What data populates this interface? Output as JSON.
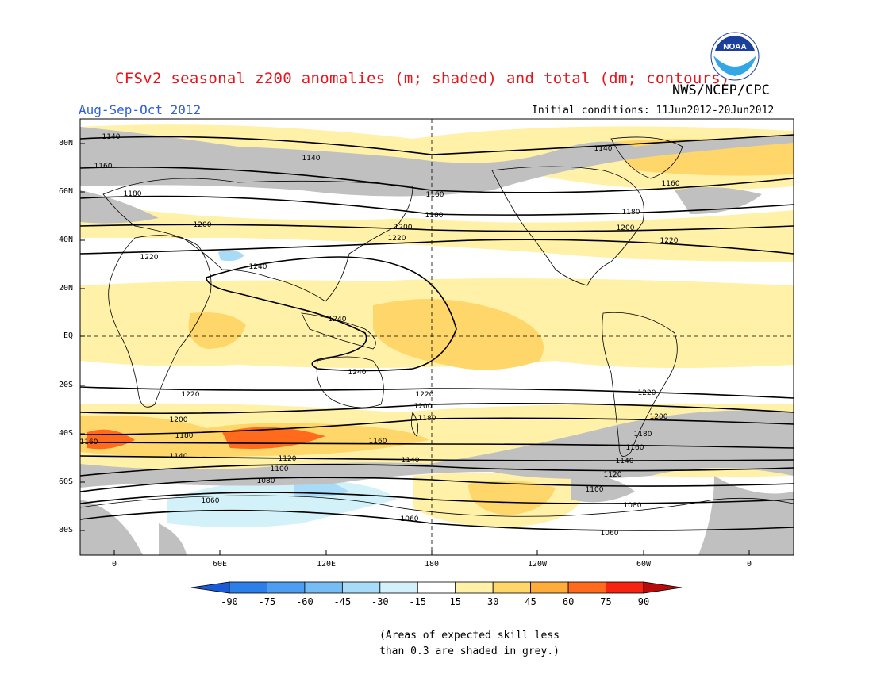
{
  "header": {
    "title": "CFSv2 seasonal z200 anomalies (m; shaded) and total (dm; contours)",
    "agency": "NWS/NCEP/CPC",
    "season": "Aug-Sep-Oct 2012",
    "initial_conditions": "Initial conditions: 11Jun2012-20Jun2012",
    "logo_text": "NOAA"
  },
  "map": {
    "latitude_labels": [
      "80N",
      "60N",
      "40N",
      "20N",
      "EQ",
      "20S",
      "40S",
      "60S",
      "80S"
    ],
    "longitude_labels": [
      "0",
      "60E",
      "120E",
      "180",
      "120W",
      "60W",
      "0"
    ],
    "contour_labels": [
      "1060",
      "1080",
      "1100",
      "1120",
      "1140",
      "1160",
      "1180",
      "1200",
      "1220",
      "1240"
    ],
    "colors": {
      "land_outline": "#000000",
      "neutral": "#ffffff",
      "low_skill_grey": "#c0c0c0"
    }
  },
  "colorbar": {
    "labels": [
      "-90",
      "-75",
      "-60",
      "-45",
      "-30",
      "-15",
      "15",
      "30",
      "45",
      "60",
      "75",
      "90"
    ],
    "colors": [
      "#1b5ad7",
      "#2c7fe8",
      "#4d9ef0",
      "#77bdf5",
      "#a7dbf7",
      "#d2f1f8",
      "#ffffff",
      "#fff1a8",
      "#ffd66a",
      "#ffac3a",
      "#ff6a1c",
      "#f5230f",
      "#b80b0b"
    ]
  },
  "footnote": {
    "line1": "(Areas of expected skill less",
    "line2": "than 0.3 are shaded in grey.)"
  }
}
